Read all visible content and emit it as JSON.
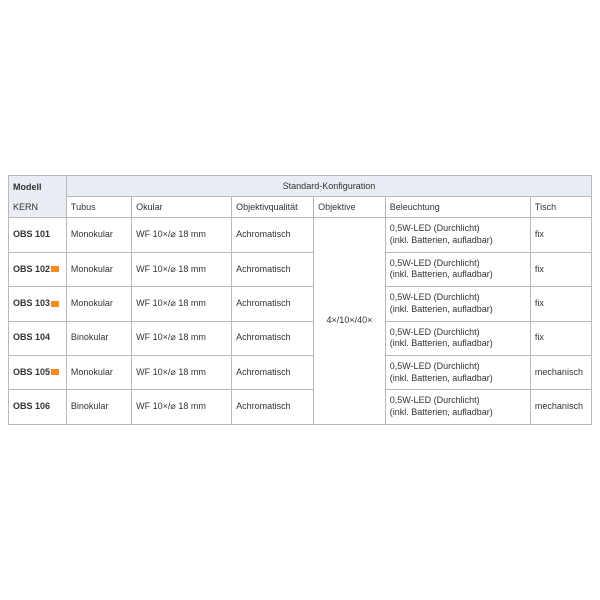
{
  "header": {
    "modell": "Modell",
    "kern": "KERN",
    "config": "Standard-Konfiguration",
    "sub": {
      "tubus": "Tubus",
      "okular": "Okular",
      "objq": "Objektivqualität",
      "obj": "Objektive",
      "bel": "Beleuchtung",
      "tisch": "Tisch"
    }
  },
  "objektive_merged": "4×/10×/40×",
  "rows": [
    {
      "model": "OBS 101",
      "badge": false,
      "tubus": "Monokular",
      "okular": "WF 10×/⌀ 18 mm",
      "objq": "Achromatisch",
      "bel1": "0,5W-LED (Durchlicht)",
      "bel2": "(inkl. Batterien, aufladbar)",
      "tisch": "fix"
    },
    {
      "model": "OBS 102",
      "badge": true,
      "tubus": "Monokular",
      "okular": "WF 10×/⌀ 18 mm",
      "objq": "Achromatisch",
      "bel1": "0,5W-LED (Durchlicht)",
      "bel2": "(inkl. Batterien, aufladbar)",
      "tisch": "fix"
    },
    {
      "model": "OBS 103",
      "badge": true,
      "tubus": "Monokular",
      "okular": "WF 10×/⌀ 18 mm",
      "objq": "Achromatisch",
      "bel1": "0,5W-LED (Durchlicht)",
      "bel2": "(inkl. Batterien, aufladbar)",
      "tisch": "fix"
    },
    {
      "model": "OBS 104",
      "badge": false,
      "tubus": "Binokular",
      "okular": "WF 10×/⌀ 18 mm",
      "objq": "Achromatisch",
      "bel1": "0,5W-LED (Durchlicht)",
      "bel2": "(inkl. Batterien, aufladbar)",
      "tisch": "fix"
    },
    {
      "model": "OBS 105",
      "badge": true,
      "tubus": "Monokular",
      "okular": "WF 10×/⌀ 18 mm",
      "objq": "Achromatisch",
      "bel1": "0,5W-LED (Durchlicht)",
      "bel2": "(inkl. Batterien, aufladbar)",
      "tisch": "mechanisch"
    },
    {
      "model": "OBS 106",
      "badge": false,
      "tubus": "Binokular",
      "okular": "WF 10×/⌀ 18 mm",
      "objq": "Achromatisch",
      "bel1": "0,5W-LED (Durchlicht)",
      "bel2": "(inkl. Batterien, aufladbar)",
      "tisch": "mechanisch"
    }
  ],
  "colors": {
    "header_bg": "#e8eef4",
    "border": "#b8b8b8",
    "badge": "#f28c1c",
    "text": "#333333",
    "bg": "#ffffff"
  }
}
